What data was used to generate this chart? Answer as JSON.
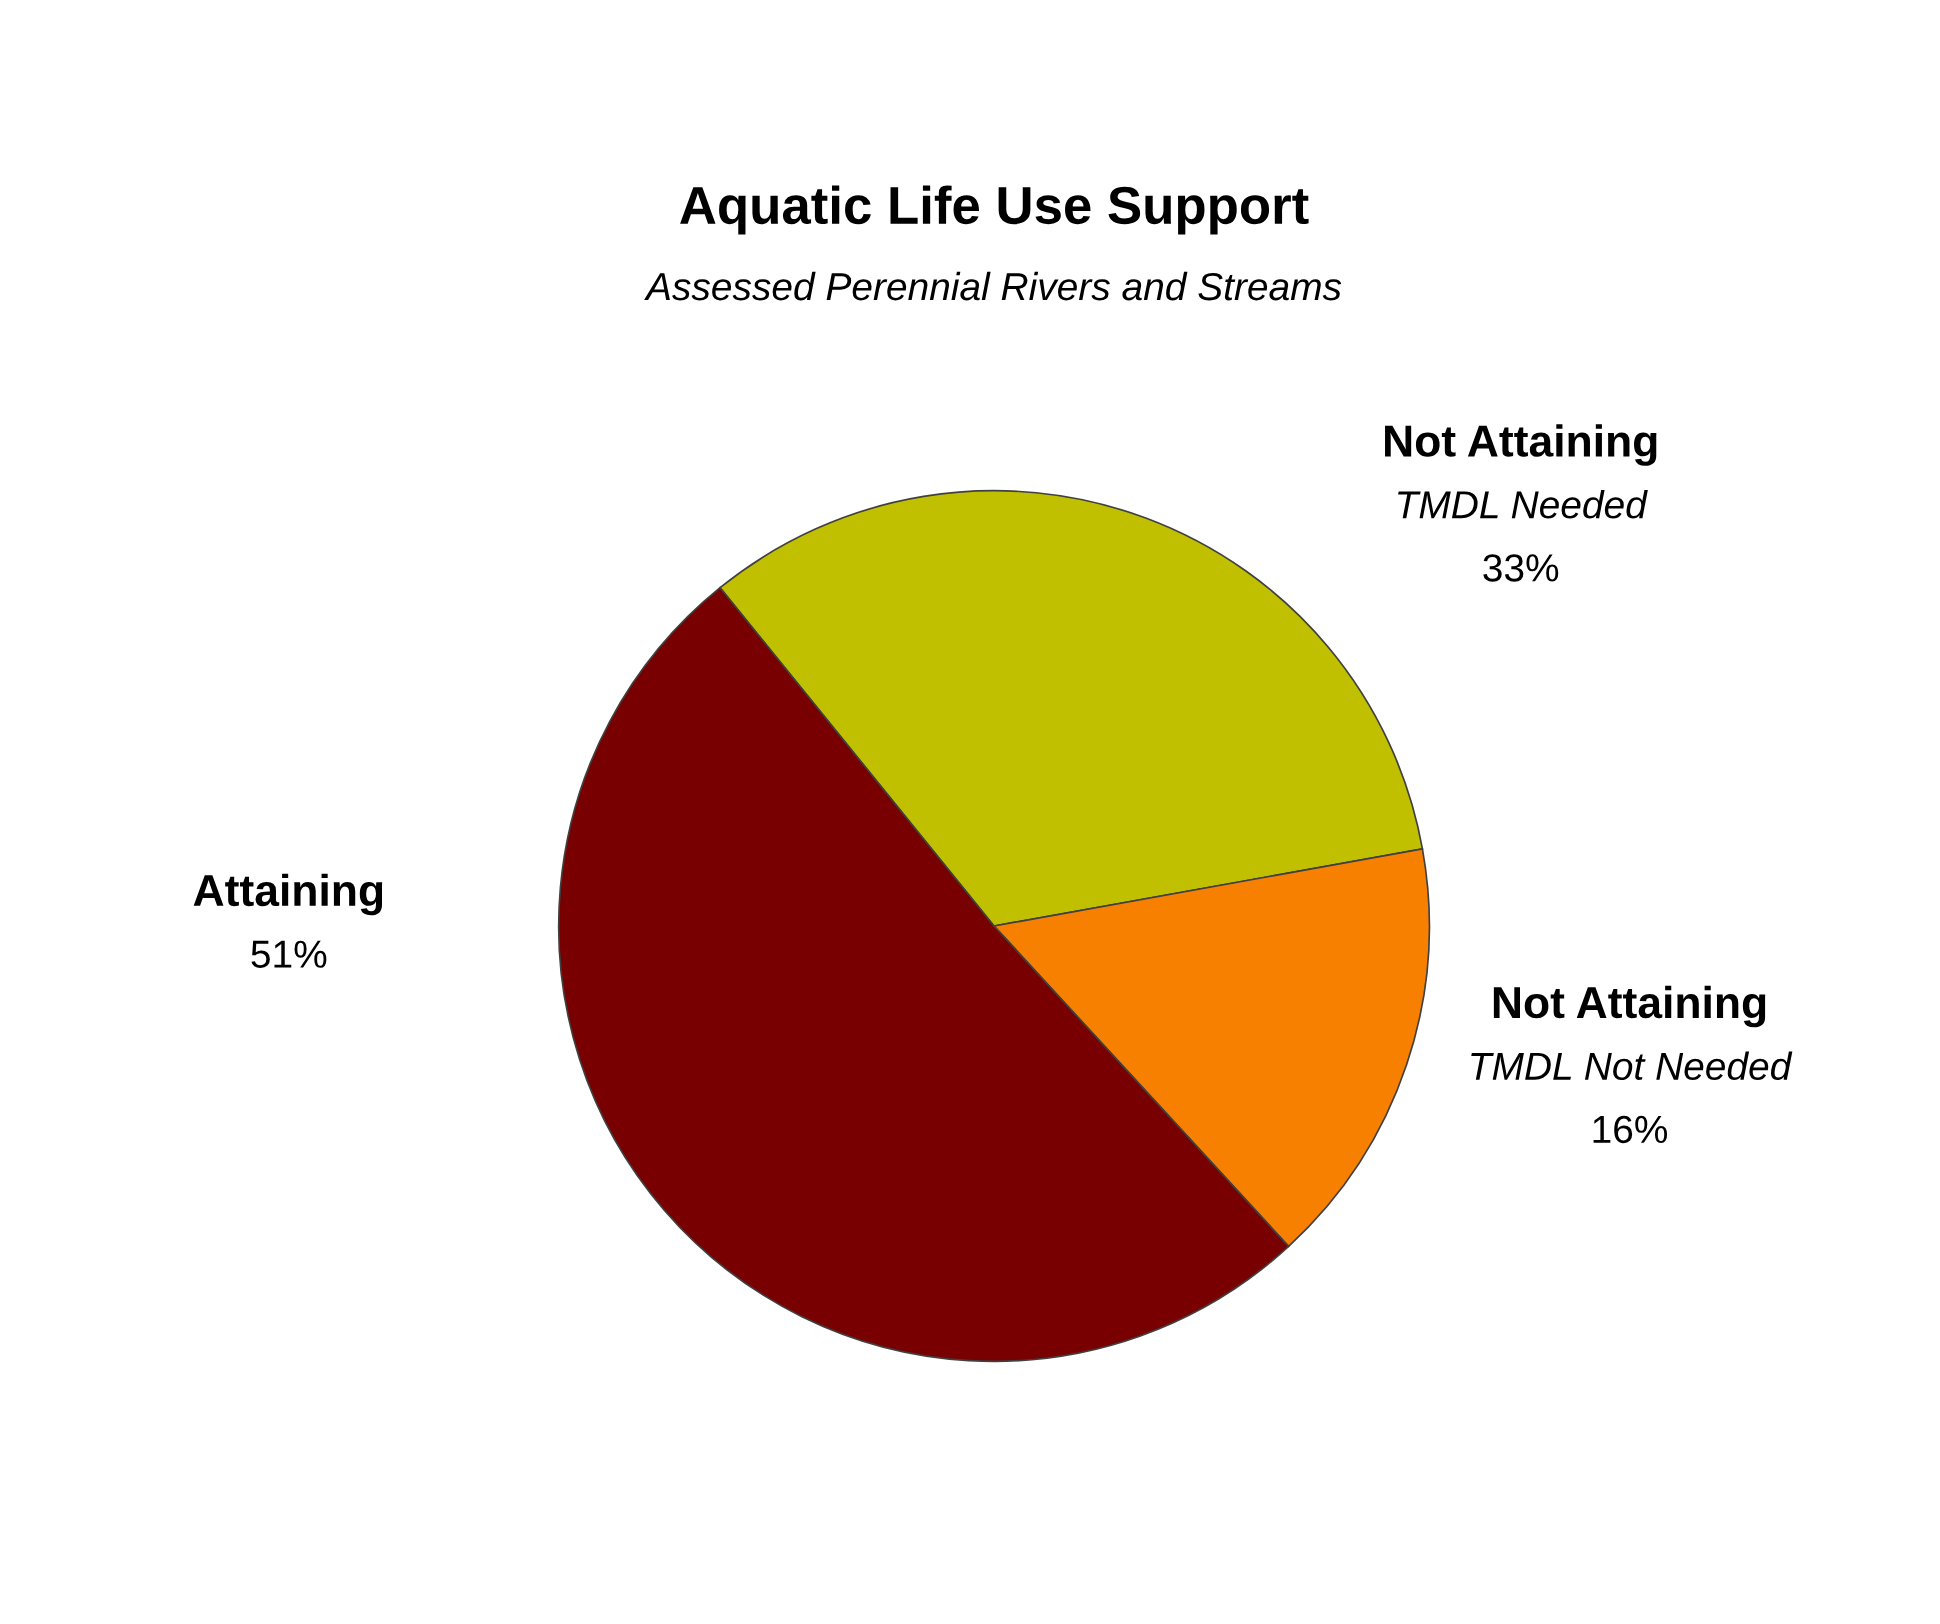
{
  "chart_data": {
    "type": "pie",
    "title": "Aquatic Life Use Support",
    "subtitle": "Assessed Perennial Rivers and Streams",
    "categories": [
      "Not Attaining\nTMDL Needed",
      "Not Attaining\nTMDL Not Needed",
      "Attaining"
    ],
    "values": [
      33,
      16,
      51
    ],
    "colors": [
      "#c0c000",
      "#f88000",
      "#780000"
    ],
    "value_labels": [
      "33%",
      "16%",
      "51%"
    ],
    "legend": false
  }
}
